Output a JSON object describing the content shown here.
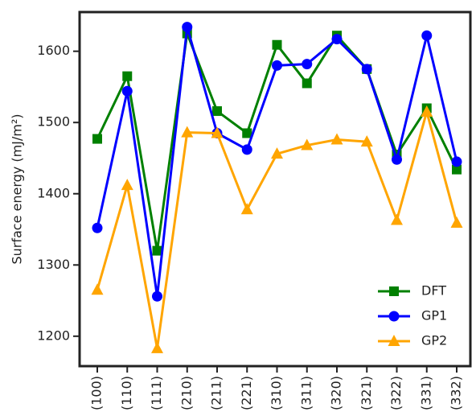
{
  "chart_data": {
    "type": "line",
    "ylabel": "Surface energy (mJ/m²)",
    "categories": [
      "(100)",
      "(110)",
      "(111)",
      "(210)",
      "(211)",
      "(221)",
      "(310)",
      "(311)",
      "(320)",
      "(321)",
      "(322)",
      "(331)",
      "(332)"
    ],
    "series": [
      {
        "name": "DFT",
        "color": "#008000",
        "marker": "square",
        "values": [
          1477,
          1565,
          1320,
          1625,
          1516,
          1485,
          1609,
          1555,
          1622,
          1575,
          1455,
          1520,
          1434
        ]
      },
      {
        "name": "GP1",
        "color": "#0000ff",
        "marker": "circle",
        "values": [
          1352,
          1544,
          1256,
          1634,
          1485,
          1462,
          1580,
          1582,
          1617,
          1575,
          1448,
          1622,
          1445
        ]
      },
      {
        "name": "GP2",
        "color": "#ffa500",
        "marker": "triangle",
        "values": [
          1265,
          1412,
          1183,
          1486,
          1485,
          1378,
          1456,
          1468,
          1476,
          1473,
          1363,
          1515,
          1359
        ]
      }
    ],
    "ylim": [
      1158,
      1655
    ],
    "yticks": [
      1200,
      1300,
      1400,
      1500,
      1600
    ],
    "legend": "lower right"
  }
}
